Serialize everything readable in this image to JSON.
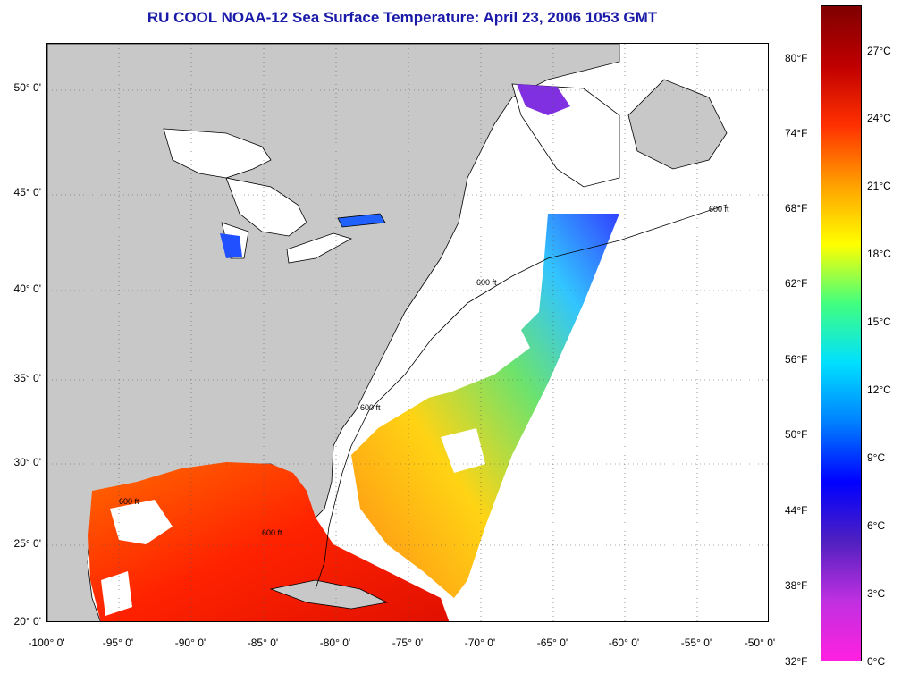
{
  "title": "RU COOL  NOAA-12  Sea Surface Temperature:  April 23, 2006 1053 GMT",
  "map": {
    "lat_labels": [
      "50° 0'",
      "45° 0'",
      "40° 0'",
      "35° 0'",
      "30° 0'",
      "25° 0'",
      "20° 0'"
    ],
    "lon_labels": [
      "-100° 0'",
      "-95° 0'",
      "-90° 0'",
      "-85° 0'",
      "-80° 0'",
      "-75° 0'",
      "-70° 0'",
      "-65° 0'",
      "-60° 0'",
      "-55° 0'",
      "-50° 0'"
    ],
    "isobath_labels": [
      "600 ft",
      "600 ft",
      "600 ft",
      "600 ft",
      "600 ft"
    ],
    "colors": {
      "land": "#c8c8c8",
      "cloud": "#ffffff",
      "grid": "#000000"
    }
  },
  "colorbar": {
    "fahrenheit": [
      "80°F",
      "74°F",
      "68°F",
      "62°F",
      "56°F",
      "50°F",
      "44°F",
      "38°F",
      "32°F"
    ],
    "celsius": [
      "27°C",
      "24°C",
      "21°C",
      "18°C",
      "15°C",
      "12°C",
      "9°C",
      "6°C",
      "3°C",
      "0°C"
    ],
    "stops": [
      "#ff20e0",
      "#c030e0",
      "#5020c0",
      "#0000ff",
      "#0080ff",
      "#00e0ff",
      "#40ff80",
      "#ffff00",
      "#ffa000",
      "#ff3000",
      "#c00000",
      "#800000"
    ]
  }
}
